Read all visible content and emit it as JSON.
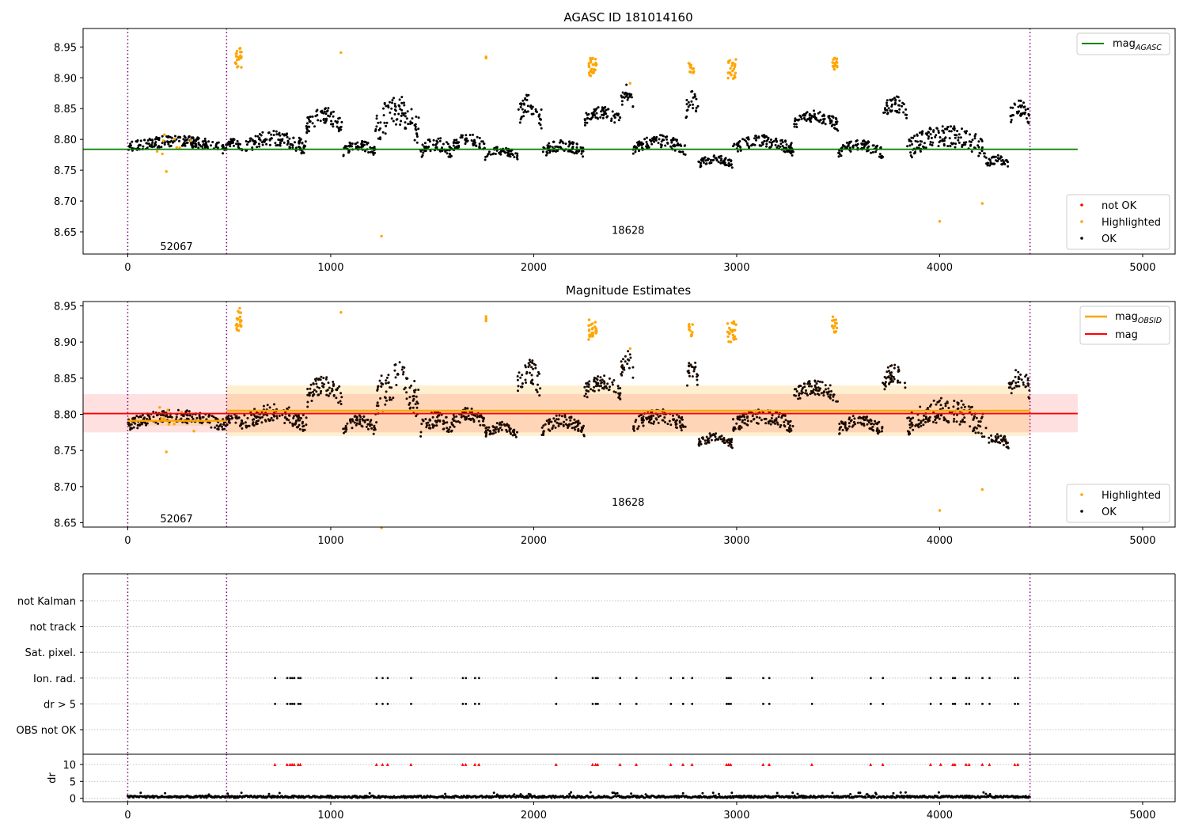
{
  "chart_data": [
    {
      "type": "scatter",
      "title": "AGASC ID 181014160",
      "xlim": [
        -220,
        5160
      ],
      "ylim": [
        8.614,
        8.98
      ],
      "xticks": [
        0,
        1000,
        2000,
        3000,
        4000,
        5000
      ],
      "yticks": [
        8.65,
        8.7,
        8.75,
        8.8,
        8.85,
        8.9,
        8.95
      ],
      "ytick_labels": [
        "8.65",
        "8.70",
        "8.75",
        "8.80",
        "8.85",
        "8.90",
        "8.95"
      ],
      "vlines": [
        0,
        487,
        4445
      ],
      "obsids": [
        {
          "label": "52067",
          "x": 240,
          "y": 8.627
        },
        {
          "label": "18628",
          "x": 2465,
          "y": 8.653
        }
      ],
      "mag_agasc": {
        "value": 8.784,
        "x0": -220,
        "x1": 4680,
        "color": "#008000"
      },
      "ok_segments": [
        {
          "x0": 0,
          "x1": 480,
          "lo": 8.775,
          "hi": 8.807
        },
        {
          "x0": 480,
          "x1": 560,
          "lo": 8.78,
          "hi": 8.802
        },
        {
          "x0": 560,
          "x1": 880,
          "lo": 8.772,
          "hi": 8.815
        },
        {
          "x0": 880,
          "x1": 1060,
          "lo": 8.805,
          "hi": 8.855
        },
        {
          "x0": 1060,
          "x1": 1220,
          "lo": 8.77,
          "hi": 8.8
        },
        {
          "x0": 1220,
          "x1": 1440,
          "lo": 8.78,
          "hi": 8.875
        },
        {
          "x0": 1440,
          "x1": 1600,
          "lo": 8.765,
          "hi": 8.805
        },
        {
          "x0": 1600,
          "x1": 1760,
          "lo": 8.778,
          "hi": 8.81
        },
        {
          "x0": 1760,
          "x1": 1920,
          "lo": 8.765,
          "hi": 8.79
        },
        {
          "x0": 1920,
          "x1": 2040,
          "lo": 8.815,
          "hi": 8.878
        },
        {
          "x0": 2040,
          "x1": 2250,
          "lo": 8.768,
          "hi": 8.8
        },
        {
          "x0": 2250,
          "x1": 2430,
          "lo": 8.818,
          "hi": 8.855
        },
        {
          "x0": 2430,
          "x1": 2490,
          "lo": 8.845,
          "hi": 8.89
        },
        {
          "x0": 2490,
          "x1": 2750,
          "lo": 8.772,
          "hi": 8.808
        },
        {
          "x0": 2750,
          "x1": 2810,
          "lo": 8.83,
          "hi": 8.88
        },
        {
          "x0": 2810,
          "x1": 2980,
          "lo": 8.752,
          "hi": 8.775
        },
        {
          "x0": 2980,
          "x1": 3280,
          "lo": 8.772,
          "hi": 8.808
        },
        {
          "x0": 3280,
          "x1": 3500,
          "lo": 8.812,
          "hi": 8.848
        },
        {
          "x0": 3500,
          "x1": 3720,
          "lo": 8.768,
          "hi": 8.8
        },
        {
          "x0": 3720,
          "x1": 3840,
          "lo": 8.825,
          "hi": 8.872
        },
        {
          "x0": 3840,
          "x1": 4230,
          "lo": 8.762,
          "hi": 8.825
        },
        {
          "x0": 4230,
          "x1": 4340,
          "lo": 8.75,
          "hi": 8.775
        },
        {
          "x0": 4340,
          "x1": 4445,
          "lo": 8.818,
          "hi": 8.865
        }
      ],
      "highlighted": [
        {
          "x0": 530,
          "x1": 560,
          "lo": 8.915,
          "hi": 8.948,
          "n": 22
        },
        {
          "x0": 2270,
          "x1": 2310,
          "lo": 8.903,
          "hi": 8.932,
          "n": 26
        },
        {
          "x0": 2760,
          "x1": 2790,
          "lo": 8.907,
          "hi": 8.925,
          "n": 12
        },
        {
          "x0": 2955,
          "x1": 3000,
          "lo": 8.898,
          "hi": 8.93,
          "n": 24
        },
        {
          "x0": 3465,
          "x1": 3495,
          "lo": 8.913,
          "hi": 8.935,
          "n": 16
        },
        {
          "x0": 1050,
          "x1": 1050,
          "lo": 8.941,
          "hi": 8.941,
          "n": 1
        },
        {
          "x0": 1765,
          "x1": 1765,
          "lo": 8.926,
          "hi": 8.937,
          "n": 3
        },
        {
          "x0": 190,
          "x1": 190,
          "lo": 8.748,
          "hi": 8.748,
          "n": 1
        },
        {
          "x0": 140,
          "x1": 330,
          "lo": 8.765,
          "hi": 8.815,
          "n": 8
        },
        {
          "x0": 1250,
          "x1": 1250,
          "lo": 8.643,
          "hi": 8.643,
          "n": 1
        },
        {
          "x0": 4000,
          "x1": 4000,
          "lo": 8.667,
          "hi": 8.667,
          "n": 1
        },
        {
          "x0": 4210,
          "x1": 4210,
          "lo": 8.696,
          "hi": 8.696,
          "n": 1
        },
        {
          "x0": 2475,
          "x1": 2475,
          "lo": 8.891,
          "hi": 8.891,
          "n": 1
        }
      ],
      "line_legend": [
        "mag$_{AGASC}$"
      ],
      "scatter_legend": [
        {
          "label": "not OK",
          "color": "#ff0000"
        },
        {
          "label": "Highlighted",
          "color": "#ffa500"
        },
        {
          "label": "OK",
          "color": "#000000"
        }
      ],
      "legend_placement": [
        "upper right",
        "lower right"
      ],
      "grid": false
    },
    {
      "type": "scatter",
      "title": "Magnitude Estimates",
      "xlim": [
        -220,
        5160
      ],
      "ylim": [
        8.644,
        8.956
      ],
      "xticks": [
        0,
        1000,
        2000,
        3000,
        4000,
        5000
      ],
      "yticks": [
        8.65,
        8.7,
        8.75,
        8.8,
        8.85,
        8.9,
        8.95
      ],
      "ytick_labels": [
        "8.65",
        "8.70",
        "8.75",
        "8.80",
        "8.85",
        "8.90",
        "8.95"
      ],
      "vlines": [
        0,
        487,
        4445
      ],
      "obsids": [
        {
          "label": "52067",
          "x": 240,
          "y": 8.656
        },
        {
          "label": "18628",
          "x": 2465,
          "y": 8.679
        }
      ],
      "mag": {
        "value": 8.801,
        "lo": 8.775,
        "hi": 8.828,
        "x0": -220,
        "x1": 4680,
        "color": "#ff0000"
      },
      "mag_obsid": [
        {
          "x0": 0,
          "x1": 487,
          "value": 8.791,
          "lo": 8.784,
          "hi": 8.797
        },
        {
          "x0": 487,
          "x1": 4445,
          "value": 8.805,
          "lo": 8.77,
          "hi": 8.84
        }
      ],
      "highlighted_ids_same_as_panel_1": true,
      "line_legend": [
        "mag$_{OBSID}$",
        "mag"
      ],
      "scatter_legend": [
        {
          "label": "Highlighted",
          "color": "#ffa500"
        },
        {
          "label": "OK",
          "color": "#000000"
        }
      ],
      "legend_placement": [
        "upper right",
        "lower right"
      ],
      "grid": false
    },
    {
      "type": "scatter",
      "xlim": [
        -220,
        5160
      ],
      "xticks": [
        0,
        1000,
        2000,
        3000,
        4000,
        5000
      ],
      "vlines": [
        0,
        487,
        4445
      ],
      "flag_categories": [
        "not Kalman",
        "not track",
        "Sat. pixel.",
        "Ion. rad.",
        "dr > 5",
        "OBS not OK"
      ],
      "flag_events_x": [
        725,
        785,
        800,
        810,
        820,
        840,
        850,
        1225,
        1255,
        1280,
        1395,
        1650,
        1665,
        1710,
        1730,
        2110,
        2290,
        2305,
        2315,
        2425,
        2505,
        2675,
        2735,
        2780,
        2950,
        2960,
        2970,
        3130,
        3160,
        3370,
        3660,
        3720,
        3955,
        4005,
        4065,
        4075,
        4130,
        4145,
        4210,
        4245,
        4370,
        4385
      ],
      "dr": {
        "ylim": [
          -1,
          13
        ],
        "yticks": [
          0,
          5,
          10
        ],
        "ylabel": "dr",
        "series_x_range": [
          0,
          4445
        ],
        "typical": 0.5,
        "max": 1.8
      },
      "grid": true
    }
  ]
}
